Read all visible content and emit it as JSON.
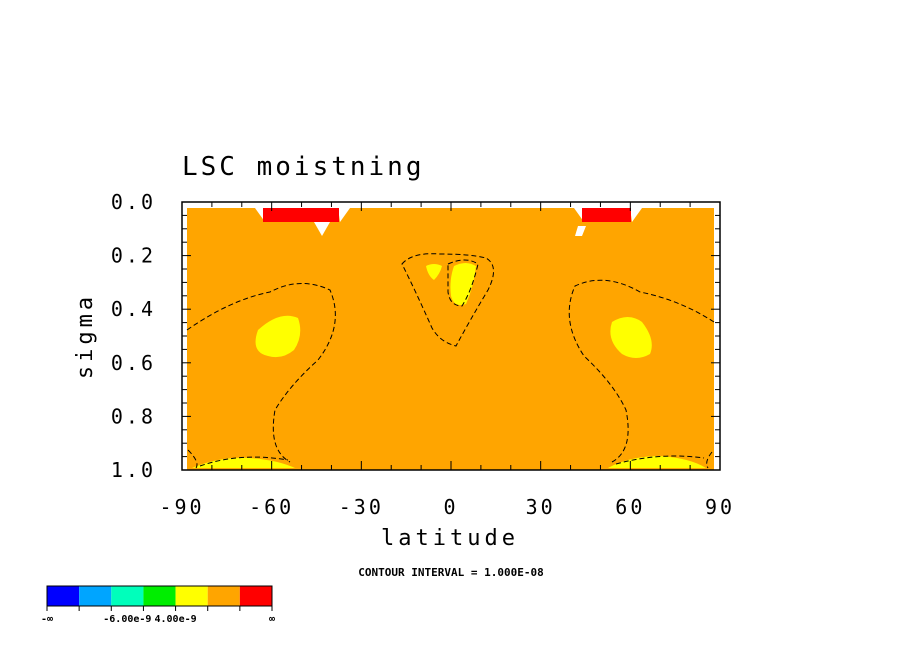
{
  "chart_data": {
    "type": "contour",
    "title": "LSC moistning",
    "xlabel": "latitude",
    "ylabel": "sigma",
    "x_ticks": [
      -90,
      -60,
      -30,
      0,
      30,
      60,
      90
    ],
    "y_ticks": [
      "0.0",
      "0.2",
      "0.4",
      "0.6",
      "0.8",
      "1.0"
    ],
    "xlim": [
      -90,
      90
    ],
    "ylim": [
      1.0,
      0.0
    ],
    "contour_interval_label": "CONTOUR INTERVAL = 1.000E-08",
    "background_level_color": "#ffa500",
    "regions": [
      {
        "level": "max",
        "color": "#ff0000",
        "lat": [
          -64,
          -38
        ],
        "sigma": [
          0.02,
          0.07
        ]
      },
      {
        "level": "max",
        "color": "#ff0000",
        "lat": [
          43,
          60
        ],
        "sigma": [
          0.02,
          0.07
        ]
      },
      {
        "level": "yellow",
        "color": "#ffff00",
        "lat": [
          -68,
          -50
        ],
        "sigma": [
          0.43,
          0.58
        ]
      },
      {
        "level": "yellow",
        "color": "#ffff00",
        "lat": [
          52,
          68
        ],
        "sigma": [
          0.43,
          0.58
        ]
      },
      {
        "level": "yellow",
        "color": "#ffff00",
        "lat": [
          -1,
          8
        ],
        "sigma": [
          0.23,
          0.39
        ]
      },
      {
        "level": "yellow",
        "color": "#ffff00",
        "lat": [
          -9,
          -4
        ],
        "sigma": [
          0.23,
          0.29
        ]
      }
    ],
    "colorbar": {
      "colors": [
        "#0000ff",
        "#00a5ff",
        "#00ffbb",
        "#00ee00",
        "#ffff00",
        "#ffa500",
        "#ff0000"
      ],
      "labels": [
        "-∞",
        "-6.00e-9",
        "4.00e-9",
        "∞"
      ]
    }
  }
}
